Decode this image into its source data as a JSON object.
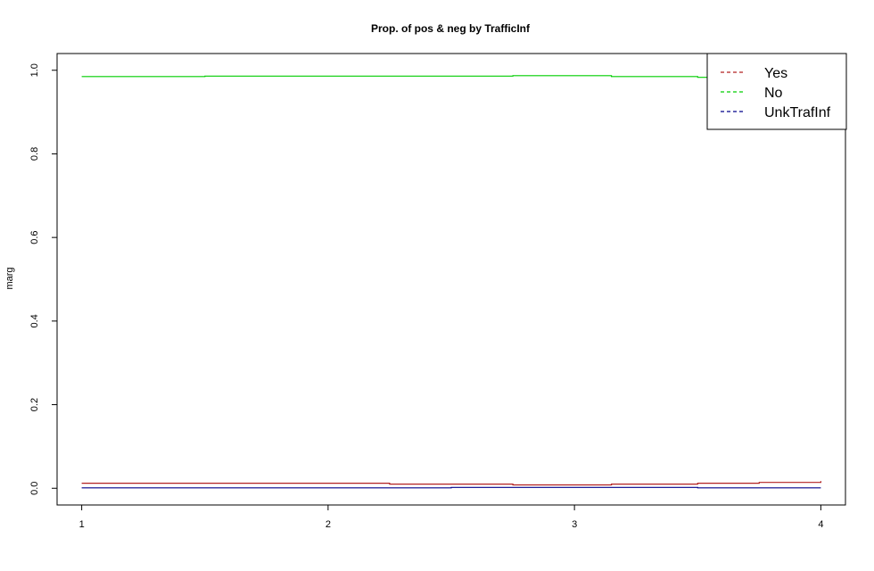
{
  "chart_data": {
    "type": "line",
    "title": "Prop. of pos & neg by TrafficInf",
    "xlabel": "",
    "ylabel": "marg",
    "xlim": [
      0.9,
      4.1
    ],
    "ylim": [
      -0.04,
      1.04
    ],
    "x_ticks": [
      "1",
      "2",
      "3",
      "4"
    ],
    "y_ticks": [
      "0.0",
      "0.2",
      "0.4",
      "0.6",
      "0.8",
      "1.0"
    ],
    "grid": false,
    "legend_position": "top-right",
    "step": true,
    "series": [
      {
        "name": "Yes",
        "color": "#b22222",
        "x": [
          1,
          1.5,
          2.25,
          2.75,
          3.15,
          3.5,
          3.75,
          4
        ],
        "values": [
          0.012,
          0.012,
          0.01,
          0.008,
          0.01,
          0.012,
          0.014,
          0.017
        ]
      },
      {
        "name": "No",
        "color": "#00cd00",
        "x": [
          1,
          1.5,
          2.25,
          2.75,
          3.15,
          3.5,
          3.75,
          4
        ],
        "values": [
          0.985,
          0.986,
          0.986,
          0.987,
          0.985,
          0.983,
          0.983,
          0.983
        ]
      },
      {
        "name": "UnkTrafInf",
        "color": "#00008b",
        "x": [
          1,
          1.5,
          2.25,
          2.5,
          3.15,
          3.5,
          3.75,
          4
        ],
        "values": [
          0.001,
          0.001,
          0.001,
          0.002,
          0.002,
          0.001,
          0.001,
          0.001
        ]
      }
    ]
  }
}
